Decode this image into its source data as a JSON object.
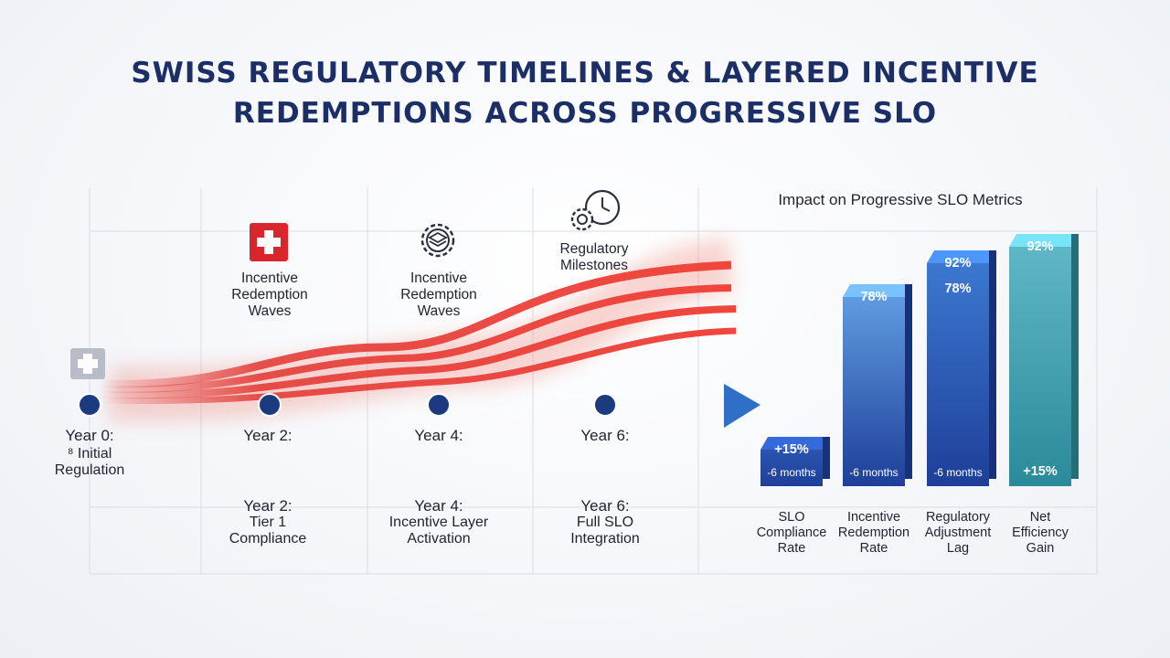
{
  "title_lines": [
    "SWISS REGULATORY TIMELINES & LAYERED INCENTIVE",
    "REDEMPTIONS ACROSS PROGRESSIVE SLO"
  ],
  "timeline": {
    "labels": [
      {
        "lines": [
          "Incentive",
          "Redemption",
          "Waves"
        ],
        "icon": "swiss-cross-icon"
      },
      {
        "lines": [
          "Incentive",
          "Redemption",
          "Waves"
        ],
        "icon": "gear-layers-icon"
      },
      {
        "lines": [
          "Regulatory",
          "Milestones"
        ],
        "icon": "gear-clock-icon"
      }
    ],
    "nodes": [
      {
        "year": "Year 0:",
        "sub": [
          "⁸ Initial",
          "Regulation"
        ]
      },
      {
        "year": "Year 2:",
        "sub": []
      },
      {
        "year": "Year 4:",
        "sub": []
      },
      {
        "year": "Year 6:",
        "sub": []
      }
    ],
    "milestones": [
      {
        "year": "Year 2:",
        "lines": [
          "Tier 1",
          "Compliance"
        ]
      },
      {
        "year": "Year 4:",
        "lines": [
          "Incentive Layer",
          "Activation"
        ]
      },
      {
        "year": "Year 6:",
        "lines": [
          "Full SLO",
          "Integration"
        ]
      }
    ]
  },
  "colors": {
    "title": "#1b2f66",
    "timeline_line": "#1f3f8c",
    "wave_red": "#e3342f",
    "bar_light_blue": "#4a86d4",
    "bar_dark_blue": "#1e3f99",
    "bar_teal": "#2b8a9a"
  },
  "chart_data": {
    "type": "bar",
    "title": "Impact on Progressive SLO Metrics",
    "categories": [
      [
        "SLO",
        "Compliance",
        "Rate"
      ],
      [
        "Incentive",
        "Redemption",
        "Rate"
      ],
      [
        "Regulatory",
        "Adjustment",
        "Lag"
      ],
      [
        "Net",
        "Efficiency",
        "Gain"
      ]
    ],
    "values": [
      15,
      78,
      92,
      92
    ],
    "bar_labels": [
      {
        "top": "+15%",
        "mid": "",
        "bottom": "-6 months"
      },
      {
        "top": "78%",
        "mid": "",
        "bottom": "-6 months"
      },
      {
        "top": "92%",
        "mid": "78%",
        "bottom": "-6 months"
      },
      {
        "top": "92%",
        "mid": "",
        "bottom": "+15%"
      }
    ]
  }
}
